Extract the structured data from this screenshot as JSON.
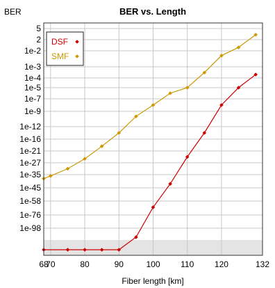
{
  "chart_data": {
    "type": "line",
    "title": "BER vs. Length",
    "ylabel": "BER",
    "xlabel": "Fiber length [km]",
    "xlim": [
      68,
      132
    ],
    "x_ticks": [
      68,
      70,
      80,
      90,
      100,
      110,
      120,
      132
    ],
    "y_ticks": [
      "5",
      "2",
      "1e-2",
      "1e-3",
      "1e-4",
      "1e-5",
      "1e-7",
      "1e-9",
      "1e-12",
      "1e-16",
      "1e-21",
      "1e-27",
      "1e-35",
      "1e-45",
      "1e-58",
      "1e-76",
      "1e-98"
    ],
    "y_scale": "custom (non-uniform BER scale)",
    "grid": true,
    "legend_position": "top-left",
    "floor_shading": "light gray band below 1e-98",
    "series": [
      {
        "name": "DSF",
        "color": "#cc0000",
        "x": [
          68,
          75,
          80,
          85,
          90,
          95,
          100,
          105,
          110,
          115,
          120,
          125,
          130
        ],
        "y": [
          1e-110,
          1e-110,
          1e-110,
          1e-110,
          1e-110,
          1e-103,
          1e-66,
          1e-42,
          1e-24,
          1e-14,
          1e-08,
          1e-05,
          0.0002
        ]
      },
      {
        "name": "SMF",
        "color": "#cc9900",
        "x": [
          68,
          70,
          75,
          80,
          85,
          90,
          95,
          100,
          105,
          110,
          115,
          120,
          125,
          130
        ],
        "y": [
          1e-38,
          1e-36,
          1e-31,
          1e-25,
          1e-19,
          1e-14,
          1e-10,
          1e-08,
          1e-06,
          1e-05,
          0.0003,
          0.005,
          0.05,
          3
        ]
      }
    ]
  }
}
